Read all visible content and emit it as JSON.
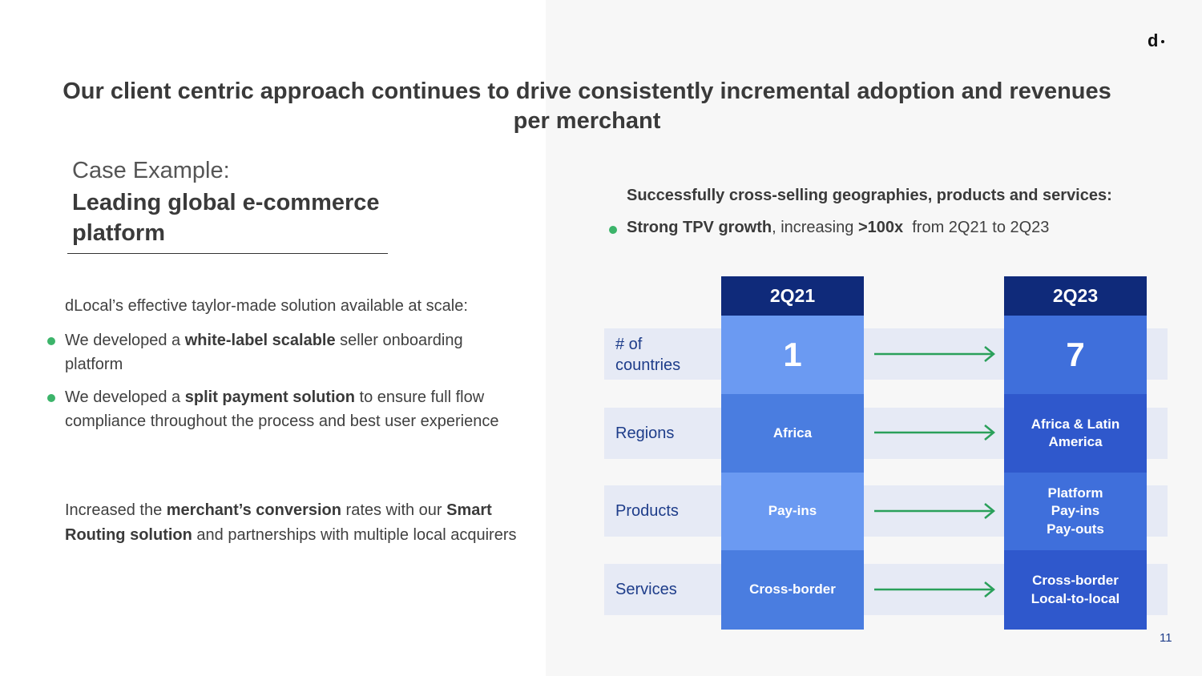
{
  "header": {
    "logo": "d",
    "title": "Our client centric approach continues to drive consistently incremental adoption and revenues per merchant"
  },
  "left": {
    "case_label": "Case Example:",
    "case_title": "Leading global e-commerce platform",
    "intro": "dLocal’s effective taylor-made solution available at scale:",
    "bullet1": {
      "pre": "We developed a ",
      "bold": "white-label scalable",
      "post": " seller onboarding platform"
    },
    "bullet2": {
      "pre": "We developed a ",
      "bold": "split payment solution",
      "post": " to ensure full flow compliance throughout the process and best user experience"
    },
    "para": {
      "pre": "Increased the ",
      "bold1": "merchant’s conversion",
      "mid": " rates with our ",
      "bold2": "Smart Routing solution",
      "post": " and partnerships with multiple local acquirers"
    }
  },
  "right": {
    "subheading": "Successfully cross-selling geographies, products and services:",
    "tpv": {
      "bold1": "Strong TPV growth",
      "mid": ", increasing ",
      "bold2": ">100x",
      "post": "  from 2Q21 to 2Q23"
    },
    "col1": "2Q21",
    "col2": "2Q23",
    "rows": [
      {
        "label": "# of\ncountries",
        "before": "1",
        "after": "7"
      },
      {
        "label": "Regions",
        "before": "Africa",
        "after": "Africa & Latin\nAmerica"
      },
      {
        "label": "Products",
        "before": "Pay-ins",
        "after": "Platform\nPay-ins\nPay-outs"
      },
      {
        "label": "Services",
        "before": "Cross-border",
        "after": "Cross-border\nLocal-to-local"
      }
    ],
    "colors": {
      "header": "#0f2a7a",
      "before_cells": [
        "#6b9af2",
        "#4a7de0",
        "#6b9af2",
        "#4a7de0"
      ],
      "after_cells": [
        "#3f6fdb",
        "#2f58cc",
        "#3f6fdb",
        "#2f58cc"
      ],
      "arrow": "#2aa05a",
      "band": "#e6eaf5"
    }
  },
  "page_number": "11"
}
